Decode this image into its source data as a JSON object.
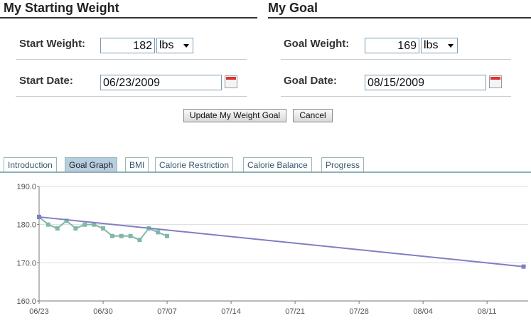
{
  "starting": {
    "title": "My Starting Weight",
    "weight_label": "Start Weight:",
    "weight": "182",
    "unit": "lbs",
    "date_label": "Start Date:",
    "date": "06/23/2009"
  },
  "goal": {
    "title": "My Goal",
    "weight_label": "Goal Weight:",
    "weight": "169",
    "unit": "lbs",
    "date_label": "Goal Date:",
    "date": "08/15/2009"
  },
  "buttons": [
    "Update My Weight Goal",
    "Cancel"
  ],
  "tabs": [
    "Introduction",
    "Goal Graph",
    "BMI",
    "Calorie Restriction",
    "Calorie Balance",
    "Progress"
  ],
  "selected_tab": "Goal Graph",
  "chart_data": {
    "type": "line",
    "grid": true,
    "xlim": [
      0,
      53.5
    ],
    "xticks": [
      {
        "value": 0,
        "label": "06/23"
      },
      {
        "value": 7,
        "label": "06/30"
      },
      {
        "value": 14,
        "label": "07/07"
      },
      {
        "value": 21,
        "label": "07/14"
      },
      {
        "value": 28,
        "label": "07/21"
      },
      {
        "value": 35,
        "label": "07/28"
      },
      {
        "value": 42,
        "label": "08/04"
      },
      {
        "value": 49,
        "label": "08/11"
      }
    ],
    "ylim": [
      160,
      190
    ],
    "yticks": [
      {
        "value": 160,
        "label": "160.0"
      },
      {
        "value": 170,
        "label": "170.0"
      },
      {
        "value": 180,
        "label": "180.0"
      },
      {
        "value": 190,
        "label": "190.0"
      }
    ],
    "series": [
      {
        "color": "#7fb9a6",
        "x": [
          0,
          1,
          2,
          3,
          4,
          5,
          6,
          7,
          8,
          9,
          10,
          11,
          12,
          13,
          14
        ],
        "values": [
          182,
          180,
          179,
          181,
          179,
          180,
          180,
          179,
          177,
          177,
          177,
          176,
          179,
          178,
          177
        ]
      },
      {
        "color": "#7f7fc4",
        "x": [
          0,
          53
        ],
        "values": [
          182,
          169
        ]
      }
    ]
  }
}
